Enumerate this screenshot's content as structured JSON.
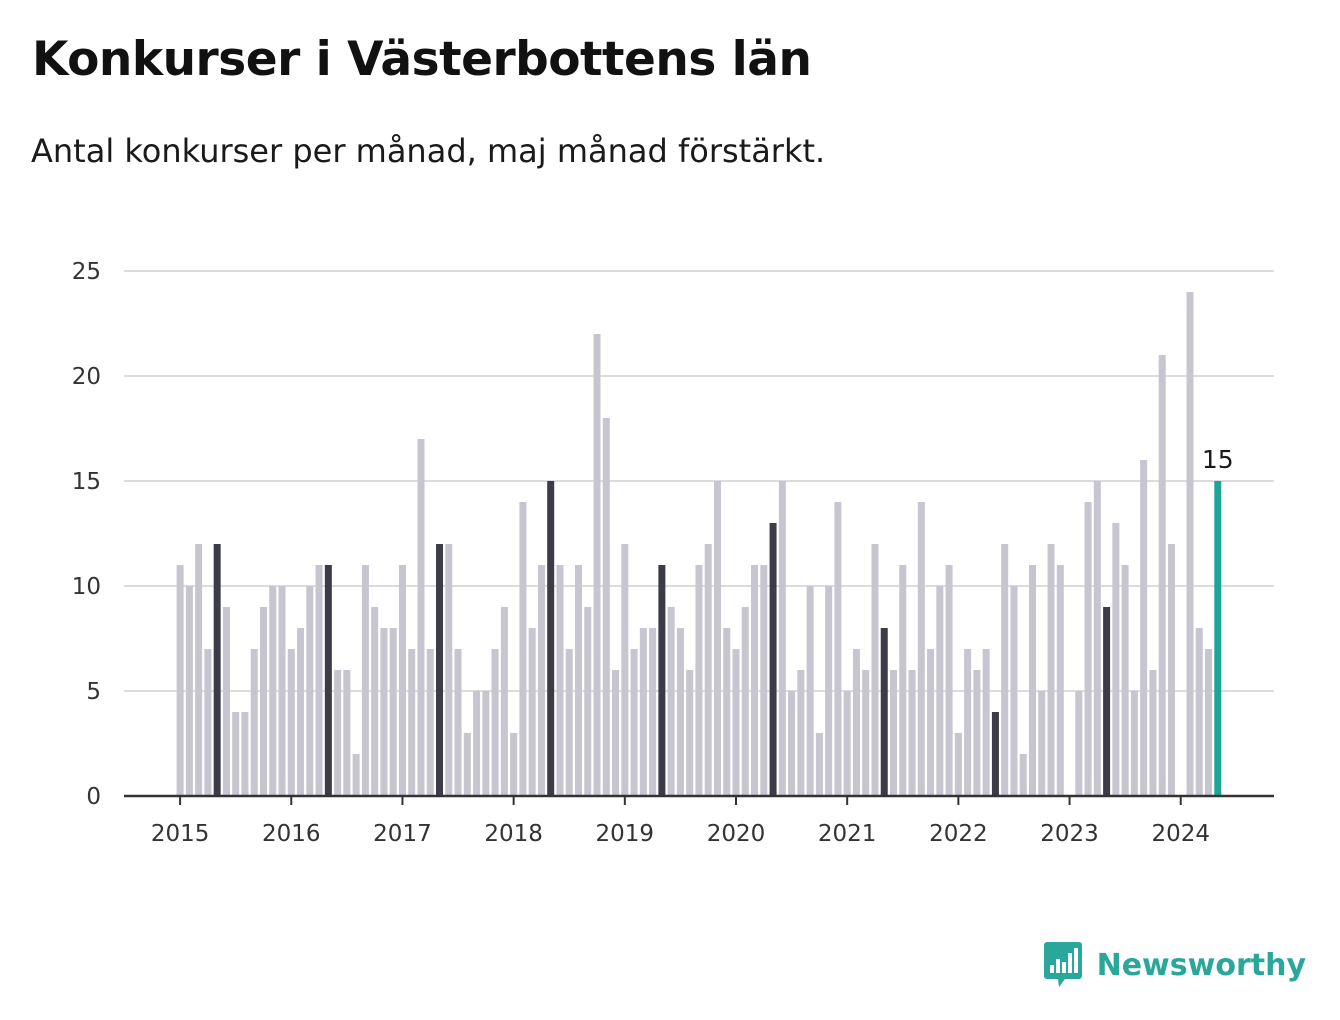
{
  "title": "Konkurser i Västerbottens län",
  "subtitle": "Antal konkurser per månad, maj månad förstärkt.",
  "brand": {
    "name": "Newsworthy",
    "icon": "bar-chart-speech-bubble-icon"
  },
  "colors": {
    "bar": "#c6c5d0",
    "highlight": "#3c3b48",
    "latest": "#1fa597",
    "grid": "#dcdcdc",
    "axis": "#333333",
    "brand": "#2aa79b"
  },
  "chart_data": {
    "type": "bar",
    "title": "Konkurser i Västerbottens län",
    "subtitle": "Antal konkurser per månad, maj månad förstärkt.",
    "x_start": "2015-01",
    "x_unit": "month",
    "values": [
      11,
      10,
      12,
      7,
      12,
      9,
      4,
      4,
      7,
      9,
      10,
      10,
      7,
      8,
      10,
      11,
      11,
      6,
      6,
      2,
      11,
      9,
      8,
      8,
      11,
      7,
      17,
      7,
      12,
      12,
      7,
      3,
      5,
      5,
      7,
      9,
      3,
      14,
      8,
      11,
      15,
      11,
      7,
      11,
      9,
      22,
      18,
      6,
      12,
      7,
      8,
      8,
      11,
      9,
      8,
      6,
      11,
      12,
      15,
      8,
      7,
      9,
      11,
      11,
      13,
      15,
      5,
      6,
      10,
      3,
      10,
      14,
      5,
      7,
      6,
      12,
      8,
      6,
      11,
      6,
      14,
      7,
      10,
      11,
      3,
      7,
      6,
      7,
      4,
      12,
      10,
      2,
      11,
      5,
      12,
      11,
      0,
      5,
      14,
      15,
      9,
      13,
      11,
      5,
      16,
      6,
      21,
      12,
      0,
      24,
      8,
      7,
      15
    ],
    "highlight_month": "May",
    "xticks": [
      "2015",
      "2016",
      "2017",
      "2018",
      "2019",
      "2020",
      "2021",
      "2022",
      "2023",
      "2024"
    ],
    "yticks": [
      0,
      5,
      10,
      15,
      20,
      25
    ],
    "ylim": [
      0,
      25
    ],
    "value_label": "15",
    "grid": true,
    "legend": "none"
  }
}
